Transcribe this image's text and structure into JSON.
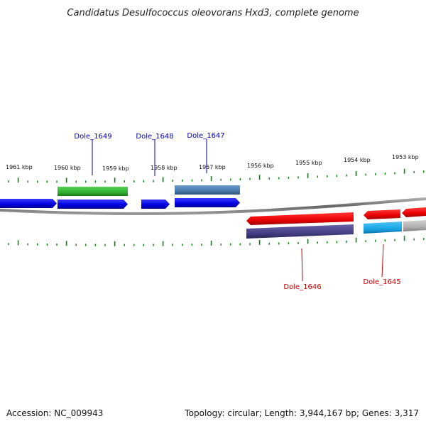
{
  "title": "Candidatus Desulfococcus oleovorans Hxd3, complete genome",
  "footer": {
    "accession": "Accession: NC_009943",
    "summary": "Topology: circular; Length: 3,944,167 bp; Genes: 3,317"
  },
  "colors": {
    "forward_cds": "#0000ee",
    "reverse_cds": "#ee0000",
    "green_feature": "#33bb33",
    "steelblue_feature": "#4f7fb0",
    "slate_feature": "#4a4488",
    "cyan_feature": "#1aa8e8",
    "gray_feature": "#b0b0b0",
    "tick": "#008800",
    "backbone": "#777777",
    "forward_label": "#0000aa",
    "reverse_label": "#cc0000"
  },
  "kbp_labels": [
    "1961 kbp",
    "1960 kbp",
    "1959 kbp",
    "1958 kbp",
    "1957 kbp",
    "1956 kbp",
    "1955 kbp",
    "1954 kbp",
    "1953 kbp"
  ],
  "gene_labels": {
    "forward": [
      "Dole_1649",
      "Dole_1648",
      "Dole_1647"
    ],
    "reverse": [
      "Dole_1646",
      "Dole_1645"
    ]
  }
}
